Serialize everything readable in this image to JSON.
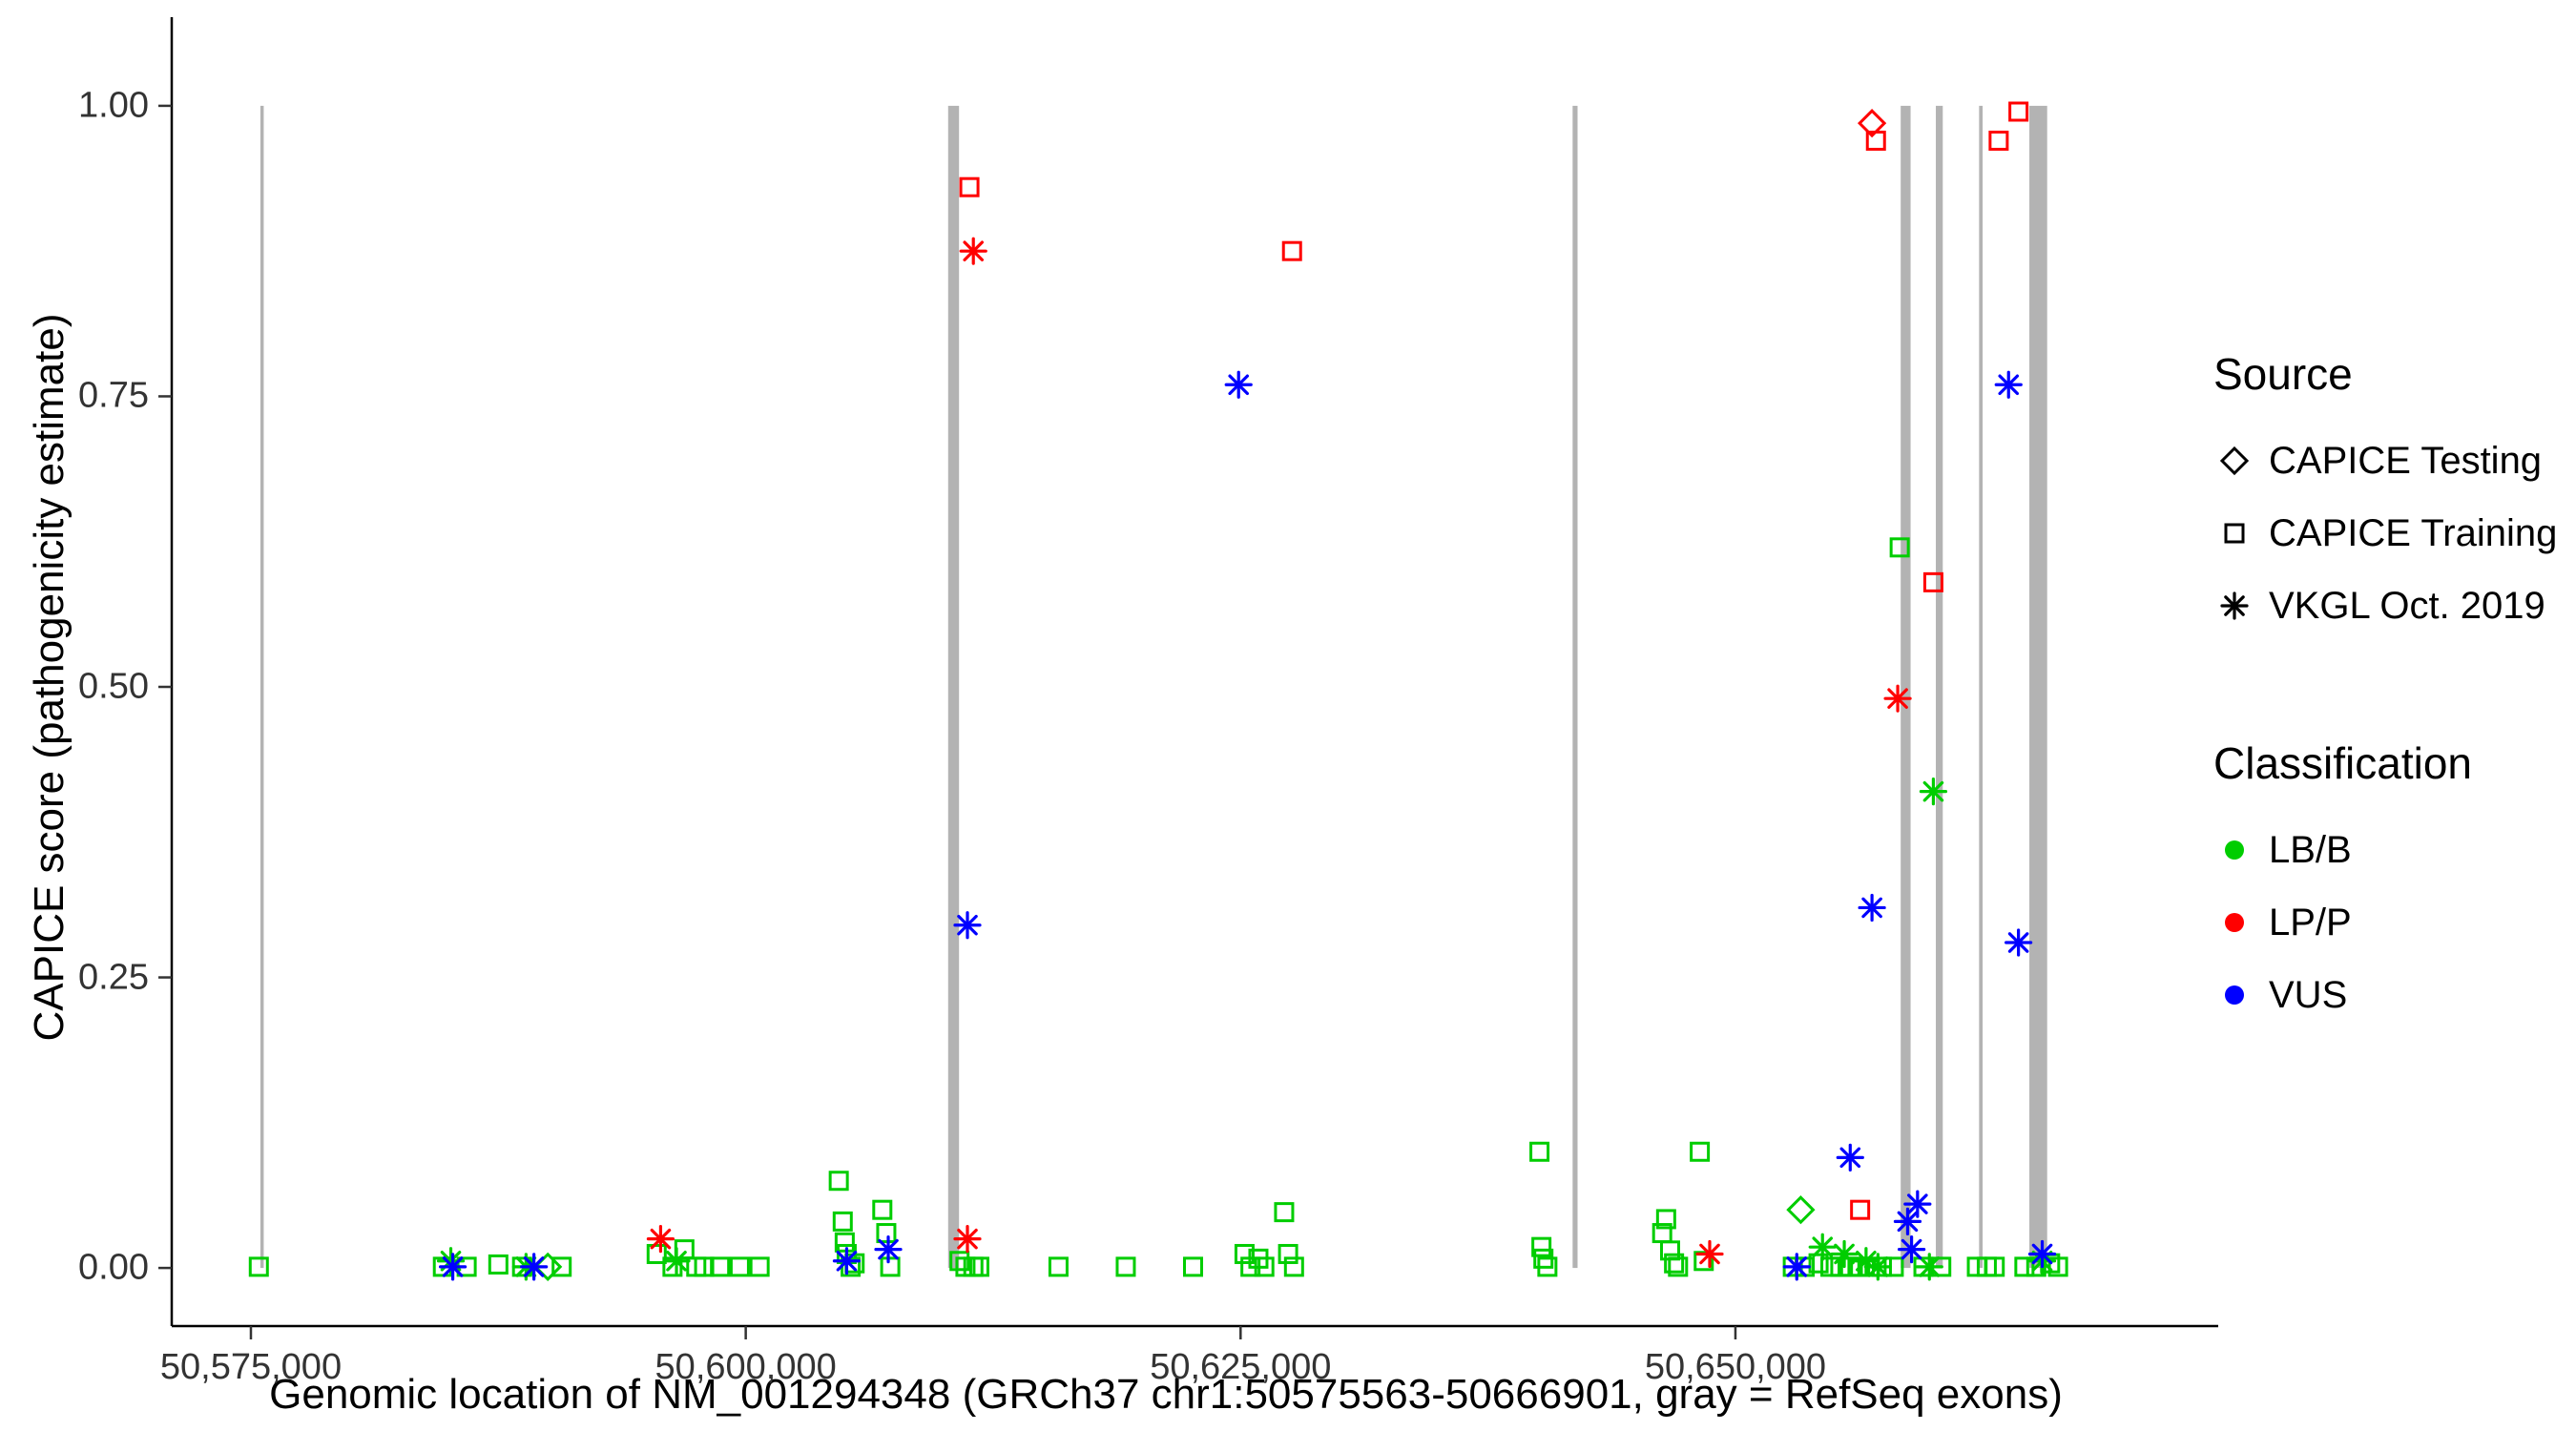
{
  "axes": {
    "x": {
      "label": "Genomic location of NM_001294348 (GRCh37 chr1:50575563-50666901, gray = RefSeq exons)",
      "ticks": [
        {
          "value": 50575000,
          "label": "50,575,000"
        },
        {
          "value": 50600000,
          "label": "50,600,000"
        },
        {
          "value": 50625000,
          "label": "50,625,000"
        },
        {
          "value": 50650000,
          "label": "50,650,000"
        }
      ]
    },
    "y": {
      "label": "CAPICE score (pathogenicity estimate)",
      "ticks": [
        {
          "value": 0.0,
          "label": "0.00"
        },
        {
          "value": 0.25,
          "label": "0.25"
        },
        {
          "value": 0.5,
          "label": "0.50"
        },
        {
          "value": 0.75,
          "label": "0.75"
        },
        {
          "value": 1.0,
          "label": "1.00"
        }
      ]
    }
  },
  "legend": {
    "source": {
      "title": "Source",
      "items": [
        {
          "label": "CAPICE Testing",
          "shape": "diamond"
        },
        {
          "label": "CAPICE Training",
          "shape": "square"
        },
        {
          "label": "VKGL Oct. 2019",
          "shape": "asterisk"
        }
      ]
    },
    "classification": {
      "title": "Classification",
      "items": [
        {
          "label": "LB/B",
          "color": "#00CD00"
        },
        {
          "label": "LP/P",
          "color": "#FF0000"
        },
        {
          "label": "VUS",
          "color": "#0000FF"
        }
      ]
    }
  },
  "chart_data": {
    "type": "scatter",
    "title": "",
    "xlabel": "Genomic location of NM_001294348 (GRCh37 chr1:50575563-50666901, gray = RefSeq exons)",
    "ylabel": "CAPICE score (pathogenicity estimate)",
    "xlim": [
      50571000,
      50671500
    ],
    "ylim": [
      -0.05,
      1.05
    ],
    "grid": false,
    "legend_position": "right",
    "exon_color": "#b3b3b3",
    "exons": [
      {
        "x": 50575563,
        "width_bp": 150
      },
      {
        "x": 50610500,
        "width_bp": 550
      },
      {
        "x": 50641900,
        "width_bp": 250
      },
      {
        "x": 50658600,
        "width_bp": 500
      },
      {
        "x": 50660300,
        "width_bp": 350
      },
      {
        "x": 50662400,
        "width_bp": 180
      },
      {
        "x": 50665300,
        "width_bp": 900
      }
    ],
    "series": [
      {
        "name": "CAPICE Testing / LP/P",
        "source": "CAPICE Testing",
        "classification": "LP/P",
        "shape": "diamond",
        "color": "#FF0000",
        "points": [
          [
            50656900,
            0.985
          ]
        ]
      },
      {
        "name": "CAPICE Testing / LB/B",
        "source": "CAPICE Testing",
        "classification": "LB/B",
        "shape": "diamond",
        "color": "#00CD00",
        "points": [
          [
            50590000,
            0.001
          ],
          [
            50653300,
            0.05
          ]
        ]
      },
      {
        "name": "CAPICE Training / LP/P",
        "source": "CAPICE Training",
        "classification": "LP/P",
        "shape": "square",
        "color": "#FF0000",
        "points": [
          [
            50611300,
            0.93
          ],
          [
            50627600,
            0.875
          ],
          [
            50657100,
            0.97
          ],
          [
            50660000,
            0.59
          ],
          [
            50663300,
            0.97
          ],
          [
            50664300,
            0.995
          ],
          [
            50656300,
            0.05
          ]
        ]
      },
      {
        "name": "CAPICE Training / LB/B",
        "source": "CAPICE Training",
        "classification": "LB/B",
        "shape": "square",
        "color": "#00CD00",
        "points": [
          [
            50575400,
            0.001
          ],
          [
            50584700,
            0.001
          ],
          [
            50585900,
            0.001
          ],
          [
            50587500,
            0.003
          ],
          [
            50588700,
            0.001
          ],
          [
            50590700,
            0.001
          ],
          [
            50595500,
            0.012
          ],
          [
            50596300,
            0.001
          ],
          [
            50596900,
            0.016
          ],
          [
            50597500,
            0.001
          ],
          [
            50597900,
            0.001
          ],
          [
            50598700,
            0.001
          ],
          [
            50599700,
            0.001
          ],
          [
            50600700,
            0.001
          ],
          [
            50604700,
            0.075
          ],
          [
            50604900,
            0.04
          ],
          [
            50605000,
            0.022
          ],
          [
            50605100,
            0.012
          ],
          [
            50605300,
            0.001
          ],
          [
            50605500,
            0.004
          ],
          [
            50606900,
            0.05
          ],
          [
            50607100,
            0.03
          ],
          [
            50607300,
            0.001
          ],
          [
            50610800,
            0.006
          ],
          [
            50611100,
            0.001
          ],
          [
            50611500,
            0.001
          ],
          [
            50611800,
            0.001
          ],
          [
            50615800,
            0.001
          ],
          [
            50619200,
            0.001
          ],
          [
            50622600,
            0.001
          ],
          [
            50625200,
            0.012
          ],
          [
            50625500,
            0.001
          ],
          [
            50625900,
            0.008
          ],
          [
            50626200,
            0.001
          ],
          [
            50627200,
            0.048
          ],
          [
            50627400,
            0.012
          ],
          [
            50627700,
            0.001
          ],
          [
            50640100,
            0.1
          ],
          [
            50640200,
            0.018
          ],
          [
            50640300,
            0.008
          ],
          [
            50640500,
            0.001
          ],
          [
            50646300,
            0.03
          ],
          [
            50646500,
            0.042
          ],
          [
            50646700,
            0.015
          ],
          [
            50646900,
            0.004
          ],
          [
            50647100,
            0.001
          ],
          [
            50648200,
            0.1
          ],
          [
            50648400,
            0.006
          ],
          [
            50652900,
            0.001
          ],
          [
            50653500,
            0.001
          ],
          [
            50654200,
            0.004
          ],
          [
            50654800,
            0.001
          ],
          [
            50655300,
            0.001
          ],
          [
            50655800,
            0.001
          ],
          [
            50656300,
            0.001
          ],
          [
            50656800,
            0.001
          ],
          [
            50657400,
            0.001
          ],
          [
            50658000,
            0.001
          ],
          [
            50658300,
            0.62
          ],
          [
            50659500,
            0.001
          ],
          [
            50660400,
            0.001
          ],
          [
            50662200,
            0.001
          ],
          [
            50662700,
            0.001
          ],
          [
            50663100,
            0.001
          ],
          [
            50664600,
            0.001
          ],
          [
            50665200,
            0.001
          ],
          [
            50665900,
            0.004
          ],
          [
            50666300,
            0.001
          ]
        ]
      },
      {
        "name": "VKGL Oct. 2019 / LP/P",
        "source": "VKGL Oct. 2019",
        "classification": "LP/P",
        "shape": "asterisk",
        "color": "#FF0000",
        "points": [
          [
            50611500,
            0.875
          ],
          [
            50658200,
            0.49
          ],
          [
            50595700,
            0.025
          ],
          [
            50611200,
            0.025
          ],
          [
            50648700,
            0.012
          ]
        ]
      },
      {
        "name": "VKGL Oct. 2019 / LB/B",
        "source": "VKGL Oct. 2019",
        "classification": "LB/B",
        "shape": "asterisk",
        "color": "#00CD00",
        "points": [
          [
            50585100,
            0.006
          ],
          [
            50588900,
            0.001
          ],
          [
            50596500,
            0.006
          ],
          [
            50660000,
            0.41
          ],
          [
            50655500,
            0.012
          ],
          [
            50656600,
            0.006
          ],
          [
            50657200,
            0.001
          ],
          [
            50659800,
            0.001
          ],
          [
            50665500,
            0.006
          ],
          [
            50654400,
            0.018
          ]
        ]
      },
      {
        "name": "VKGL Oct. 2019 / VUS",
        "source": "VKGL Oct. 2019",
        "classification": "VUS",
        "shape": "asterisk",
        "color": "#0000FF",
        "points": [
          [
            50624900,
            0.76
          ],
          [
            50663800,
            0.76
          ],
          [
            50611200,
            0.295
          ],
          [
            50656900,
            0.31
          ],
          [
            50664300,
            0.28
          ],
          [
            50655800,
            0.095
          ],
          [
            50659200,
            0.055
          ],
          [
            50585200,
            0.001
          ],
          [
            50589300,
            0.001
          ],
          [
            50605100,
            0.006
          ],
          [
            50607200,
            0.016
          ],
          [
            50653100,
            0.001
          ],
          [
            50658900,
            0.016
          ],
          [
            50658700,
            0.04
          ],
          [
            50665500,
            0.012
          ]
        ]
      }
    ]
  }
}
